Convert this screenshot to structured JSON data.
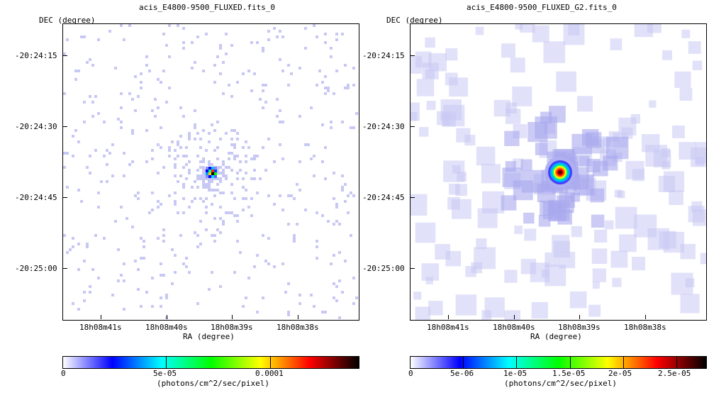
{
  "panels": [
    {
      "title": "acis_E4800-9500_FLUXED.fits_0",
      "ylabel": "DEC (degree)",
      "xlabel": "RA (degree)",
      "yticks": [
        "-20:24:15",
        "-20:24:30",
        "-20:24:45",
        "-20:25:00"
      ],
      "xticks": [
        "18h08m41s",
        "18h08m40s",
        "18h08m39s",
        "18h08m38s"
      ],
      "colorbar": {
        "labels": [
          "0",
          "5e-05",
          "0.0001"
        ],
        "unit": "(photons/cm^2/sec/pixel)",
        "colormap": [
          "#ffffff",
          "#0000ff",
          "#00ffff",
          "#00ff00",
          "#ffff00",
          "#ff0000",
          "#000000"
        ]
      },
      "image_style": "sparse-pixels"
    },
    {
      "title": "acis_E4800-9500_FLUXED_G2.fits_0",
      "ylabel": "DEC (degree)",
      "xlabel": "RA (degree)",
      "yticks": [
        "-20:24:15",
        "-20:24:30",
        "-20:24:45",
        "-20:25:00"
      ],
      "xticks": [
        "18h08m41s",
        "18h08m40s",
        "18h08m39s",
        "18h08m38s"
      ],
      "colorbar": {
        "labels": [
          "0",
          "5e-06",
          "1e-05",
          "1.5e-05",
          "2e-05",
          "2.5e-05"
        ],
        "unit": "(photons/cm^2/sec/pixel)",
        "colormap": [
          "#ffffff",
          "#0000ff",
          "#00ffff",
          "#00ff00",
          "#ffff00",
          "#ff0000",
          "#000000"
        ]
      },
      "image_style": "smoothed"
    }
  ],
  "colors": {
    "background_pixel": "#c8c8f4",
    "source_core": "#000000"
  }
}
